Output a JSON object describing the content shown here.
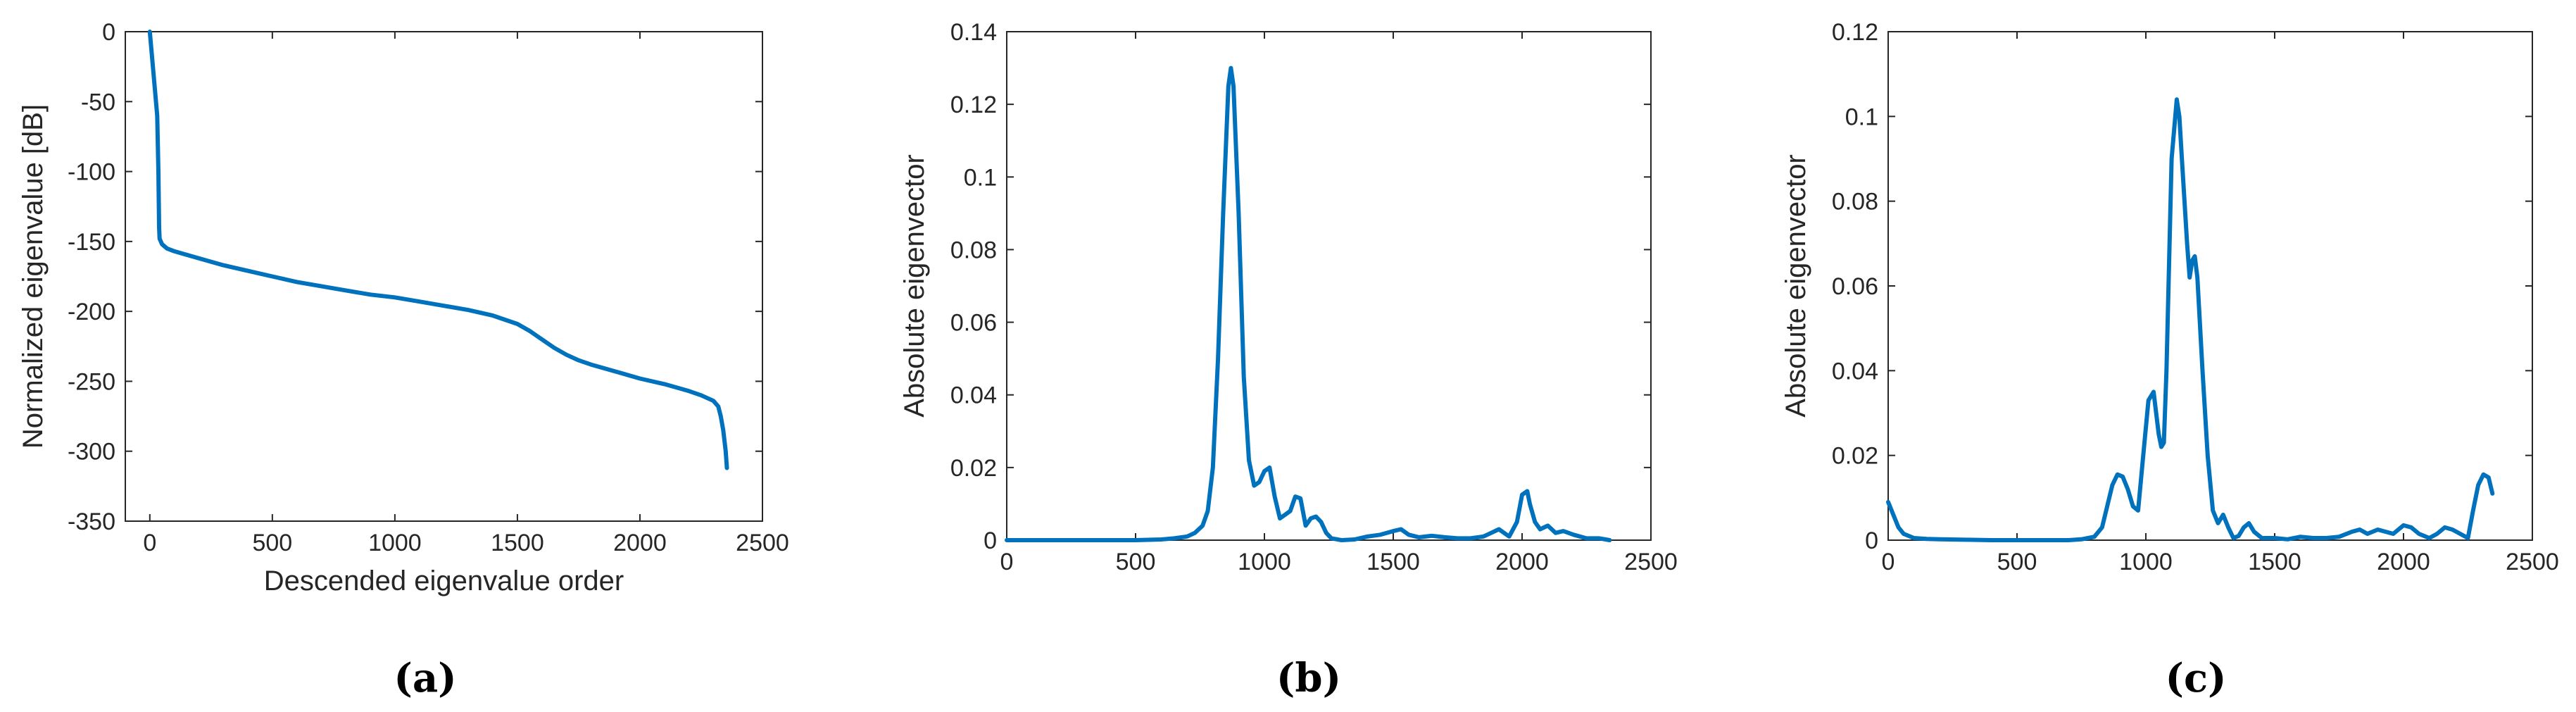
{
  "colors": {
    "series": "#0072BD",
    "axis": "#262626"
  },
  "chart_data": [
    {
      "type": "line",
      "caption": "(a)",
      "title": "",
      "xlabel": "Descended eigenvalue order",
      "ylabel": "Normalized eigenvalue [dB]",
      "xlim": [
        -100,
        2500
      ],
      "ylim": [
        -350,
        0
      ],
      "xticks": [
        0,
        500,
        1000,
        1500,
        2000,
        2500
      ],
      "yticks": [
        0,
        -50,
        -100,
        -150,
        -200,
        -250,
        -300,
        -350
      ],
      "grid": false,
      "x": [
        0,
        10,
        20,
        30,
        35,
        38,
        40,
        50,
        70,
        100,
        200,
        300,
        400,
        500,
        600,
        700,
        800,
        900,
        1000,
        1100,
        1200,
        1300,
        1400,
        1500,
        1550,
        1600,
        1650,
        1700,
        1750,
        1800,
        1900,
        2000,
        2100,
        2200,
        2250,
        2300,
        2320,
        2330,
        2340,
        2350,
        2355
      ],
      "y": [
        0,
        -20,
        -40,
        -60,
        -100,
        -140,
        -148,
        -152,
        -155,
        -157,
        -162,
        -167,
        -171,
        -175,
        -179,
        -182,
        -185,
        -188,
        -190,
        -193,
        -196,
        -199,
        -203,
        -209,
        -214,
        -220,
        -226,
        -231,
        -235,
        -238,
        -243,
        -248,
        -252,
        -257,
        -260,
        -264,
        -268,
        -275,
        -285,
        -300,
        -312
      ]
    },
    {
      "type": "line",
      "caption": "(b)",
      "title": "",
      "xlabel": "",
      "ylabel": "Absolute eigenvector",
      "xlim": [
        0,
        2500
      ],
      "ylim": [
        0,
        0.14
      ],
      "xticks": [
        0,
        500,
        1000,
        1500,
        2000,
        2500
      ],
      "yticks": [
        0,
        0.02,
        0.04,
        0.06,
        0.08,
        0.1,
        0.12,
        0.14
      ],
      "ytick_labels": [
        "0",
        "0.02",
        "0.04",
        "0.06",
        "0.08",
        "0.1",
        "0.12",
        "0.14"
      ],
      "grid": false,
      "x": [
        0,
        100,
        200,
        300,
        400,
        500,
        600,
        650,
        700,
        730,
        760,
        780,
        800,
        820,
        840,
        860,
        870,
        880,
        900,
        920,
        940,
        960,
        980,
        1000,
        1020,
        1040,
        1060,
        1080,
        1100,
        1120,
        1140,
        1160,
        1180,
        1200,
        1220,
        1240,
        1260,
        1300,
        1350,
        1400,
        1450,
        1500,
        1530,
        1560,
        1600,
        1650,
        1700,
        1750,
        1800,
        1850,
        1880,
        1910,
        1930,
        1950,
        1980,
        2000,
        2020,
        2030,
        2050,
        2070,
        2100,
        2130,
        2160,
        2200,
        2250,
        2300,
        2340
      ],
      "y": [
        0,
        0,
        0,
        0,
        0,
        0,
        0.0002,
        0.0005,
        0.001,
        0.002,
        0.004,
        0.008,
        0.02,
        0.05,
        0.09,
        0.125,
        0.13,
        0.125,
        0.09,
        0.045,
        0.022,
        0.015,
        0.016,
        0.019,
        0.02,
        0.012,
        0.006,
        0.007,
        0.008,
        0.012,
        0.0115,
        0.004,
        0.006,
        0.0065,
        0.005,
        0.002,
        0.0005,
        0,
        0.0002,
        0.001,
        0.0015,
        0.0025,
        0.003,
        0.0015,
        0.0008,
        0.0012,
        0.0008,
        0.0005,
        0.0005,
        0.001,
        0.002,
        0.003,
        0.002,
        0.001,
        0.005,
        0.0125,
        0.0135,
        0.01,
        0.005,
        0.003,
        0.004,
        0.002,
        0.0025,
        0.0015,
        0.0005,
        0.0005,
        0
      ]
    },
    {
      "type": "line",
      "caption": "(c)",
      "title": "",
      "xlabel": "",
      "ylabel": "Absolute eigenvector",
      "xlim": [
        0,
        2500
      ],
      "ylim": [
        0,
        0.12
      ],
      "xticks": [
        0,
        500,
        1000,
        1500,
        2000,
        2500
      ],
      "yticks": [
        0,
        0.02,
        0.04,
        0.06,
        0.08,
        0.1,
        0.12
      ],
      "ytick_labels": [
        "0",
        "0.02",
        "0.04",
        "0.06",
        "0.08",
        "0.1",
        "0.12"
      ],
      "grid": false,
      "x": [
        0,
        20,
        40,
        60,
        80,
        100,
        150,
        200,
        300,
        400,
        500,
        600,
        700,
        750,
        800,
        830,
        850,
        870,
        890,
        910,
        930,
        950,
        970,
        990,
        1010,
        1030,
        1050,
        1060,
        1070,
        1080,
        1100,
        1120,
        1130,
        1140,
        1160,
        1170,
        1180,
        1190,
        1200,
        1220,
        1240,
        1260,
        1280,
        1300,
        1320,
        1340,
        1360,
        1380,
        1400,
        1420,
        1450,
        1500,
        1550,
        1600,
        1650,
        1700,
        1750,
        1800,
        1830,
        1860,
        1900,
        1930,
        1960,
        2000,
        2030,
        2060,
        2100,
        2130,
        2160,
        2190,
        2220,
        2250,
        2270,
        2290,
        2310,
        2330,
        2345
      ],
      "y": [
        0.009,
        0.006,
        0.003,
        0.0015,
        0.001,
        0.0005,
        0.0003,
        0.0002,
        0.0001,
        0,
        0,
        0,
        0,
        0.0002,
        0.0008,
        0.003,
        0.008,
        0.013,
        0.0155,
        0.015,
        0.012,
        0.008,
        0.007,
        0.02,
        0.033,
        0.035,
        0.025,
        0.022,
        0.023,
        0.04,
        0.09,
        0.104,
        0.1,
        0.09,
        0.07,
        0.062,
        0.066,
        0.067,
        0.062,
        0.04,
        0.02,
        0.007,
        0.004,
        0.006,
        0.003,
        0.0005,
        0.001,
        0.003,
        0.004,
        0.002,
        0.0005,
        0.0005,
        0.0002,
        0.0008,
        0.0005,
        0.0005,
        0.0008,
        0.002,
        0.0025,
        0.0015,
        0.0025,
        0.002,
        0.0015,
        0.0035,
        0.003,
        0.0015,
        0.0005,
        0.0015,
        0.003,
        0.0025,
        0.0015,
        0.0005,
        0.007,
        0.013,
        0.0155,
        0.0148,
        0.011
      ]
    }
  ]
}
